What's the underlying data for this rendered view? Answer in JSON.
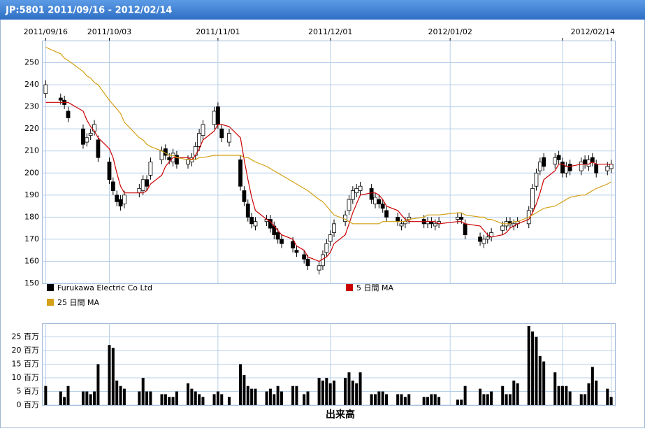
{
  "title": "JP:5801 2011/09/16 - 2012/02/14",
  "chart_data": [
    {
      "type": "candlestick",
      "name": "Furukawa Electric Co Ltd",
      "color": "#000000",
      "x": [
        "2011/09/16",
        "2011/09/20",
        "2011/09/21",
        "2011/09/22",
        "2011/09/26",
        "2011/09/27",
        "2011/09/28",
        "2011/09/29",
        "2011/09/30",
        "2011/10/03",
        "2011/10/04",
        "2011/10/05",
        "2011/10/06",
        "2011/10/07",
        "2011/10/11",
        "2011/10/12",
        "2011/10/13",
        "2011/10/14",
        "2011/10/17",
        "2011/10/18",
        "2011/10/19",
        "2011/10/20",
        "2011/10/21",
        "2011/10/24",
        "2011/10/25",
        "2011/10/26",
        "2011/10/27",
        "2011/10/28",
        "2011/10/31",
        "2011/11/01",
        "2011/11/02",
        "2011/11/04",
        "2011/11/07",
        "2011/11/08",
        "2011/11/09",
        "2011/11/10",
        "2011/11/11",
        "2011/11/14",
        "2011/11/15",
        "2011/11/16",
        "2011/11/17",
        "2011/11/18",
        "2011/11/21",
        "2011/11/22",
        "2011/11/24",
        "2011/11/25",
        "2011/11/28",
        "2011/11/29",
        "2011/11/30",
        "2011/12/01",
        "2011/12/02",
        "2011/12/05",
        "2011/12/06",
        "2011/12/07",
        "2011/12/08",
        "2011/12/09",
        "2011/12/12",
        "2011/12/13",
        "2011/12/14",
        "2011/12/15",
        "2011/12/16",
        "2011/12/19",
        "2011/12/20",
        "2011/12/21",
        "2011/12/22",
        "2011/12/26",
        "2011/12/27",
        "2011/12/28",
        "2011/12/29",
        "2011/12/30",
        "2012/01/04",
        "2012/01/05",
        "2012/01/06",
        "2012/01/10",
        "2012/01/11",
        "2012/01/12",
        "2012/01/13",
        "2012/01/16",
        "2012/01/17",
        "2012/01/18",
        "2012/01/19",
        "2012/01/20",
        "2012/01/23",
        "2012/01/24",
        "2012/01/25",
        "2012/01/26",
        "2012/01/27",
        "2012/01/30",
        "2012/01/31",
        "2012/02/01",
        "2012/02/02",
        "2012/02/03",
        "2012/02/06",
        "2012/02/07",
        "2012/02/08",
        "2012/02/09",
        "2012/02/10",
        "2012/02/13",
        "2012/02/14"
      ],
      "open": [
        236,
        234,
        233,
        228,
        220,
        214,
        217,
        219,
        215,
        205,
        196,
        190,
        188,
        186,
        191,
        192,
        197,
        199,
        206,
        211,
        207,
        205,
        208,
        204,
        205,
        208,
        212,
        217,
        222,
        230,
        220,
        214,
        206,
        192,
        186,
        180,
        176,
        178,
        179,
        176,
        173,
        170,
        169,
        165,
        163,
        161,
        156,
        158,
        164,
        169,
        173,
        178,
        183,
        188,
        191,
        192,
        193,
        186,
        188,
        186,
        183,
        180,
        176,
        177,
        179,
        179,
        177,
        178,
        176,
        177,
        179,
        180,
        177,
        171,
        168,
        170,
        171,
        174,
        176,
        178,
        176,
        177,
        177,
        184,
        194,
        201,
        207,
        204,
        208,
        205,
        200,
        204,
        201,
        206,
        203,
        207,
        204,
        201,
        202
      ],
      "high": [
        242,
        236,
        235,
        230,
        222,
        218,
        220,
        224,
        217,
        207,
        198,
        192,
        190,
        192,
        195,
        199,
        199,
        207,
        212,
        213,
        209,
        211,
        210,
        208,
        209,
        214,
        220,
        224,
        230,
        232,
        222,
        220,
        208,
        194,
        188,
        182,
        180,
        181,
        181,
        178,
        175,
        172,
        171,
        167,
        165,
        163,
        160,
        165,
        170,
        174,
        179,
        183,
        190,
        194,
        195,
        196,
        195,
        191,
        190,
        188,
        185,
        182,
        179,
        180,
        182,
        181,
        180,
        180,
        179,
        180,
        182,
        182,
        179,
        173,
        172,
        173,
        175,
        178,
        180,
        180,
        179,
        180,
        185,
        195,
        202,
        207,
        209,
        209,
        210,
        207,
        205,
        206,
        207,
        208,
        208,
        209,
        206,
        205,
        206
      ],
      "low": [
        234,
        231,
        229,
        223,
        211,
        212,
        215,
        217,
        205,
        195,
        190,
        185,
        183,
        184,
        189,
        190,
        192,
        197,
        204,
        206,
        204,
        203,
        202,
        202,
        203,
        206,
        210,
        215,
        220,
        220,
        214,
        212,
        192,
        185,
        178,
        175,
        174,
        176,
        173,
        170,
        168,
        166,
        164,
        162,
        159,
        156,
        154,
        156,
        162,
        167,
        171,
        176,
        181,
        186,
        189,
        190,
        186,
        184,
        184,
        182,
        178,
        176,
        174,
        175,
        177,
        175,
        175,
        175,
        174,
        175,
        177,
        177,
        170,
        167,
        166,
        168,
        169,
        172,
        174,
        175,
        174,
        175,
        175,
        182,
        192,
        199,
        201,
        202,
        204,
        198,
        198,
        199,
        199,
        202,
        201,
        203,
        198,
        199,
        200
      ],
      "close": [
        240,
        233,
        231,
        225,
        213,
        216,
        218,
        222,
        207,
        197,
        192,
        187,
        185,
        190,
        193,
        197,
        194,
        205,
        210,
        208,
        206,
        209,
        204,
        206,
        207,
        212,
        218,
        222,
        228,
        222,
        216,
        218,
        194,
        187,
        180,
        177,
        178,
        179,
        175,
        172,
        170,
        168,
        166,
        164,
        161,
        158,
        158,
        163,
        168,
        172,
        177,
        181,
        188,
        192,
        193,
        194,
        188,
        189,
        186,
        184,
        180,
        178,
        177,
        178,
        180,
        177,
        178,
        177,
        177,
        178,
        180,
        179,
        172,
        169,
        170,
        171,
        173,
        176,
        178,
        177,
        177,
        178,
        183,
        193,
        200,
        205,
        203,
        207,
        206,
        200,
        203,
        201,
        205,
        204,
        206,
        205,
        200,
        203,
        204
      ],
      "series": [
        {
          "name": "5 日間 MA",
          "color": "#cc0000",
          "values": [
            232,
            232,
            232,
            232,
            228,
            224,
            221,
            219,
            216,
            211,
            207,
            200,
            194,
            191,
            191,
            191,
            192,
            195,
            199,
            203,
            205,
            207,
            207,
            207,
            206,
            208,
            211,
            215,
            219,
            222,
            222,
            221,
            216,
            206,
            197,
            189,
            183,
            179,
            178,
            176,
            174,
            172,
            170,
            167,
            165,
            162,
            160,
            161,
            162,
            164,
            168,
            172,
            177,
            182,
            186,
            190,
            191,
            191,
            190,
            188,
            185,
            183,
            181,
            179,
            178,
            178,
            178,
            178,
            178,
            177,
            178,
            178,
            177,
            176,
            174,
            172,
            171,
            172,
            173,
            175,
            176,
            177,
            179,
            182,
            186,
            191,
            197,
            201,
            204,
            204,
            203,
            203,
            204,
            204,
            204,
            205,
            204,
            204,
            204
          ]
        },
        {
          "name": "25 日間 MA",
          "color": "#d4a017",
          "values": [
            257,
            254,
            252,
            251,
            246,
            244,
            243,
            241,
            240,
            233,
            231,
            229,
            227,
            223,
            216,
            215,
            213,
            212,
            210,
            209,
            208,
            208,
            207,
            206,
            206,
            206,
            207,
            207,
            208,
            208,
            208,
            208,
            208,
            207,
            207,
            206,
            205,
            203,
            202,
            201,
            200,
            199,
            196,
            195,
            193,
            192,
            188,
            187,
            185,
            183,
            181,
            179,
            178,
            177,
            177,
            177,
            177,
            177,
            177,
            178,
            178,
            178,
            178,
            178,
            179,
            180,
            181,
            181,
            181,
            181,
            182,
            182,
            181,
            180,
            180,
            179,
            179,
            177,
            177,
            177,
            178,
            178,
            180,
            181,
            182,
            183,
            184,
            185,
            186,
            187,
            188,
            189,
            190,
            190,
            191,
            192,
            193,
            195,
            196
          ]
        }
      ],
      "xlim": [
        "2011/09/16",
        "2012/02/14"
      ],
      "xticks": [
        "2011/09/16",
        "2011/10/03",
        "2011/11/01",
        "2011/12/01",
        "2012/01/02",
        {
          "value": "2012/02/01",
          "label": null
        },
        "2012/02/14"
      ],
      "ylim": [
        150,
        260
      ],
      "yticks": [
        150,
        160,
        170,
        180,
        190,
        200,
        210,
        220,
        230,
        240,
        250
      ],
      "grid": true
    },
    {
      "type": "bar",
      "xlabel": "出来高",
      "color": "#000000",
      "values": [
        7,
        5,
        3,
        7,
        5,
        5,
        4,
        5,
        15,
        22,
        21,
        9,
        7,
        6,
        5,
        10,
        5,
        5,
        4,
        4,
        3,
        3,
        5,
        8,
        6,
        5,
        4,
        3,
        4,
        5,
        4,
        3,
        15,
        11,
        7,
        6,
        6,
        5,
        6,
        4,
        7,
        5,
        7,
        7,
        4,
        5,
        10,
        9,
        10,
        8,
        9,
        10,
        12,
        9,
        8,
        12,
        4,
        4,
        5,
        5,
        4,
        4,
        4,
        3,
        4,
        3,
        3,
        4,
        4,
        3,
        2,
        2,
        7,
        6,
        4,
        4,
        5,
        7,
        4,
        4,
        9,
        8,
        29,
        27,
        25,
        18,
        16,
        12,
        7,
        7,
        7,
        5,
        4,
        4,
        8,
        14,
        9,
        6,
        3
      ],
      "ylim": [
        0,
        30
      ],
      "yticks": [
        {
          "value": 0,
          "label": "0 百万"
        },
        {
          "value": 5,
          "label": "5 百万"
        },
        {
          "value": 10,
          "label": "10 百万"
        },
        {
          "value": 15,
          "label": "15 百万"
        },
        {
          "value": 20,
          "label": "20 百万"
        },
        {
          "value": 25,
          "label": "25 百万"
        }
      ],
      "grid": true
    }
  ]
}
